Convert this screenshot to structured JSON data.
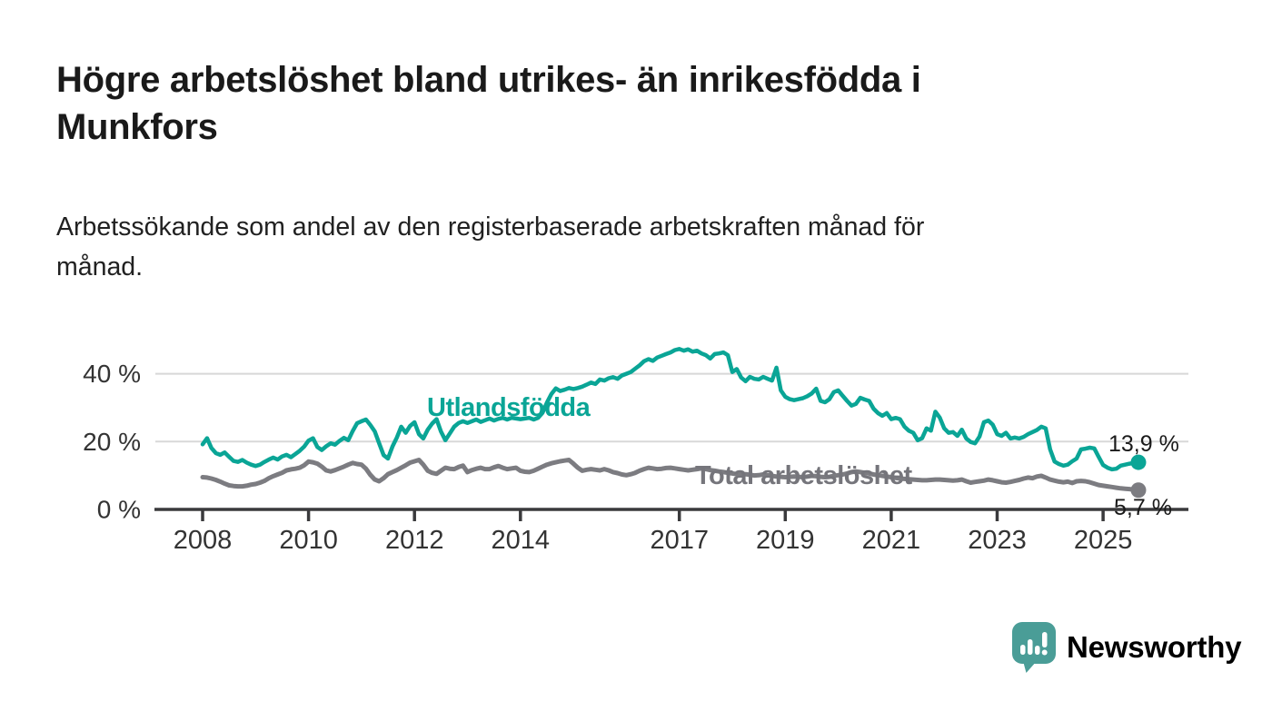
{
  "header": {
    "title": "Högre arbetslöshet bland utrikes- än inrikesfödda i Munkfors",
    "title_lines": [
      "Högre arbetslöshet bland utrikes- än inrikesfödda i",
      "Munkfors"
    ],
    "subtitle": "Arbetssökande som andel av den registerbaserade arbetskraften månad för månad.",
    "subtitle_lines": [
      "Arbetssökande som andel av den registerbaserade arbetskraften månad för",
      "månad."
    ]
  },
  "footer": {
    "brand": "Newsworthy",
    "logo_icon": "speech-bubble-bar-chart",
    "brand_text_color": "#3f9c95",
    "logo_bubble_color": "#4a9d97"
  },
  "colors": {
    "background": "#ffffff",
    "gridline": "#d8d8d8",
    "axis": "#3a3a3c",
    "axis_text": "#333333",
    "annotation_text": "#1a1a1a",
    "series_foreign": "#0aa596",
    "series_total": "#7c7c81",
    "series_total_label": "#75757b"
  },
  "chart_data": {
    "type": "line",
    "unit": "%",
    "frequency": "monthly",
    "x_start": "2008-01",
    "x_end": "2025-09",
    "ylim": [
      0,
      50
    ],
    "grid": "horizontal",
    "legend_position": "inline-labels",
    "y_ticks": [
      {
        "value": 0,
        "label": "0 %"
      },
      {
        "value": 20,
        "label": "20 %"
      },
      {
        "value": 40,
        "label": "40 %"
      }
    ],
    "x_ticks": [
      {
        "year": 2008,
        "label": "2008"
      },
      {
        "year": 2010,
        "label": "2010"
      },
      {
        "year": 2012,
        "label": "2012"
      },
      {
        "year": 2014,
        "label": "2014"
      },
      {
        "year": 2017,
        "label": "2017"
      },
      {
        "year": 2019,
        "label": "2019"
      },
      {
        "year": 2021,
        "label": "2021"
      },
      {
        "year": 2023,
        "label": "2023"
      },
      {
        "year": 2025,
        "label": "2025"
      }
    ],
    "series": [
      {
        "id": "utlandsfodda",
        "name": "Utlandsfödda",
        "color": "#0aa596",
        "end_value": 13.9,
        "end_label": "13,9 %",
        "values": [
          19.2,
          21.0,
          18.1,
          16.6,
          16.1,
          16.8,
          15.5,
          14.3,
          14.0,
          14.6,
          13.8,
          13.2,
          12.8,
          13.2,
          14.0,
          14.7,
          15.3,
          14.7,
          15.6,
          16.1,
          15.4,
          16.3,
          17.3,
          18.5,
          20.3,
          21.0,
          18.4,
          17.5,
          18.6,
          19.5,
          19.1,
          20.2,
          21.1,
          20.4,
          23.1,
          25.4,
          26.0,
          26.5,
          24.9,
          23.0,
          19.5,
          16.0,
          15.0,
          18.5,
          21.2,
          24.4,
          22.6,
          24.6,
          25.7,
          22.2,
          20.9,
          23.5,
          25.3,
          26.6,
          23.0,
          20.4,
          22.4,
          24.4,
          25.5,
          26.0,
          25.5,
          26.0,
          26.5,
          25.8,
          26.3,
          26.8,
          26.2,
          26.7,
          27.0,
          26.5,
          27.0,
          26.8,
          26.6,
          26.8,
          27.0,
          26.5,
          27.0,
          28.5,
          31.5,
          34.0,
          35.7,
          34.9,
          35.3,
          35.8,
          35.5,
          35.8,
          36.2,
          36.8,
          37.4,
          37.0,
          38.3,
          38.0,
          38.7,
          39.0,
          38.5,
          39.5,
          40.0,
          40.5,
          41.5,
          42.5,
          43.7,
          44.3,
          43.8,
          44.8,
          45.3,
          45.8,
          46.3,
          47.0,
          47.3,
          46.8,
          47.2,
          46.5,
          46.8,
          46.0,
          45.5,
          44.5,
          45.8,
          46.0,
          46.3,
          45.5,
          40.5,
          41.4,
          38.9,
          37.8,
          39.1,
          38.5,
          38.3,
          39.1,
          38.5,
          38.0,
          41.8,
          35.1,
          33.2,
          32.5,
          32.2,
          32.5,
          32.8,
          33.4,
          34.2,
          35.6,
          32.0,
          31.6,
          32.5,
          34.6,
          35.1,
          33.5,
          32.0,
          30.6,
          31.1,
          32.9,
          32.4,
          32.0,
          29.7,
          28.4,
          27.6,
          28.4,
          26.6,
          27.0,
          26.6,
          24.4,
          23.2,
          22.6,
          20.4,
          21.0,
          23.9,
          23.2,
          28.8,
          27.1,
          23.9,
          22.6,
          22.8,
          21.7,
          23.5,
          20.9,
          19.9,
          19.5,
          21.5,
          25.7,
          26.2,
          25.0,
          22.2,
          21.7,
          22.6,
          20.9,
          21.2,
          20.9,
          21.4,
          22.2,
          22.8,
          23.4,
          24.4,
          23.9,
          17.7,
          14.1,
          13.4,
          12.9,
          13.2,
          14.2,
          15.0,
          17.7,
          17.9,
          18.2,
          18.0,
          15.5,
          13.1,
          12.3,
          11.8,
          12.0,
          12.9,
          13.2,
          13.5,
          13.7,
          13.9
        ]
      },
      {
        "id": "total",
        "name": "Total arbetslöshet",
        "color": "#7c7c81",
        "end_value": 5.7,
        "end_label": "5,7 %",
        "values": [
          9.5,
          9.4,
          9.1,
          8.7,
          8.2,
          7.6,
          7.1,
          6.9,
          6.8,
          6.8,
          7.0,
          7.3,
          7.5,
          7.9,
          8.4,
          9.2,
          9.8,
          10.3,
          10.8,
          11.5,
          11.8,
          12.0,
          12.3,
          13.0,
          14.1,
          13.9,
          13.5,
          12.6,
          11.5,
          11.2,
          11.6,
          12.1,
          12.6,
          13.2,
          13.7,
          13.4,
          13.2,
          12.0,
          10.2,
          8.8,
          8.3,
          9.2,
          10.4,
          11.0,
          11.6,
          12.3,
          13.0,
          13.8,
          14.2,
          14.6,
          13.2,
          11.4,
          10.8,
          10.5,
          11.4,
          12.3,
          12.0,
          11.9,
          12.5,
          12.9,
          11.0,
          11.6,
          12.0,
          12.3,
          11.9,
          11.9,
          12.4,
          12.8,
          12.3,
          11.9,
          12.1,
          12.3,
          11.4,
          11.1,
          11.0,
          11.4,
          12.0,
          12.6,
          13.2,
          13.6,
          13.9,
          14.2,
          14.4,
          14.6,
          13.5,
          12.3,
          11.4,
          11.7,
          11.9,
          11.7,
          11.5,
          11.9,
          11.5,
          11.0,
          10.7,
          10.3,
          10.1,
          10.4,
          10.8,
          11.4,
          11.9,
          12.3,
          12.1,
          11.9,
          12.0,
          12.2,
          12.3,
          12.1,
          11.9,
          11.7,
          11.5,
          11.7,
          11.9,
          12.1,
          11.9,
          11.6,
          11.4,
          11.2,
          11.0,
          10.8,
          10.6,
          10.4,
          10.3,
          10.4,
          10.2,
          10.0,
          10.1,
          10.3,
          10.1,
          9.9,
          9.7,
          9.6,
          9.5,
          9.6,
          9.7,
          9.6,
          9.5,
          9.7,
          9.9,
          9.8,
          9.6,
          9.5,
          9.6,
          9.9,
          10.1,
          10.3,
          10.6,
          11.0,
          11.2,
          11.0,
          10.8,
          10.6,
          10.3,
          10.1,
          9.9,
          9.7,
          9.5,
          9.3,
          9.1,
          9.0,
          8.9,
          8.8,
          8.7,
          8.6,
          8.6,
          8.7,
          8.8,
          8.8,
          8.7,
          8.6,
          8.5,
          8.6,
          8.8,
          8.3,
          7.9,
          8.1,
          8.3,
          8.5,
          8.8,
          8.6,
          8.3,
          8.0,
          7.9,
          8.1,
          8.4,
          8.7,
          9.1,
          9.4,
          9.2,
          9.7,
          9.9,
          9.4,
          8.8,
          8.5,
          8.2,
          8.0,
          8.2,
          7.8,
          8.3,
          8.4,
          8.3,
          8.0,
          7.6,
          7.2,
          7.0,
          6.8,
          6.6,
          6.4,
          6.2,
          6.1,
          6.0,
          5.8,
          5.7
        ]
      }
    ]
  }
}
